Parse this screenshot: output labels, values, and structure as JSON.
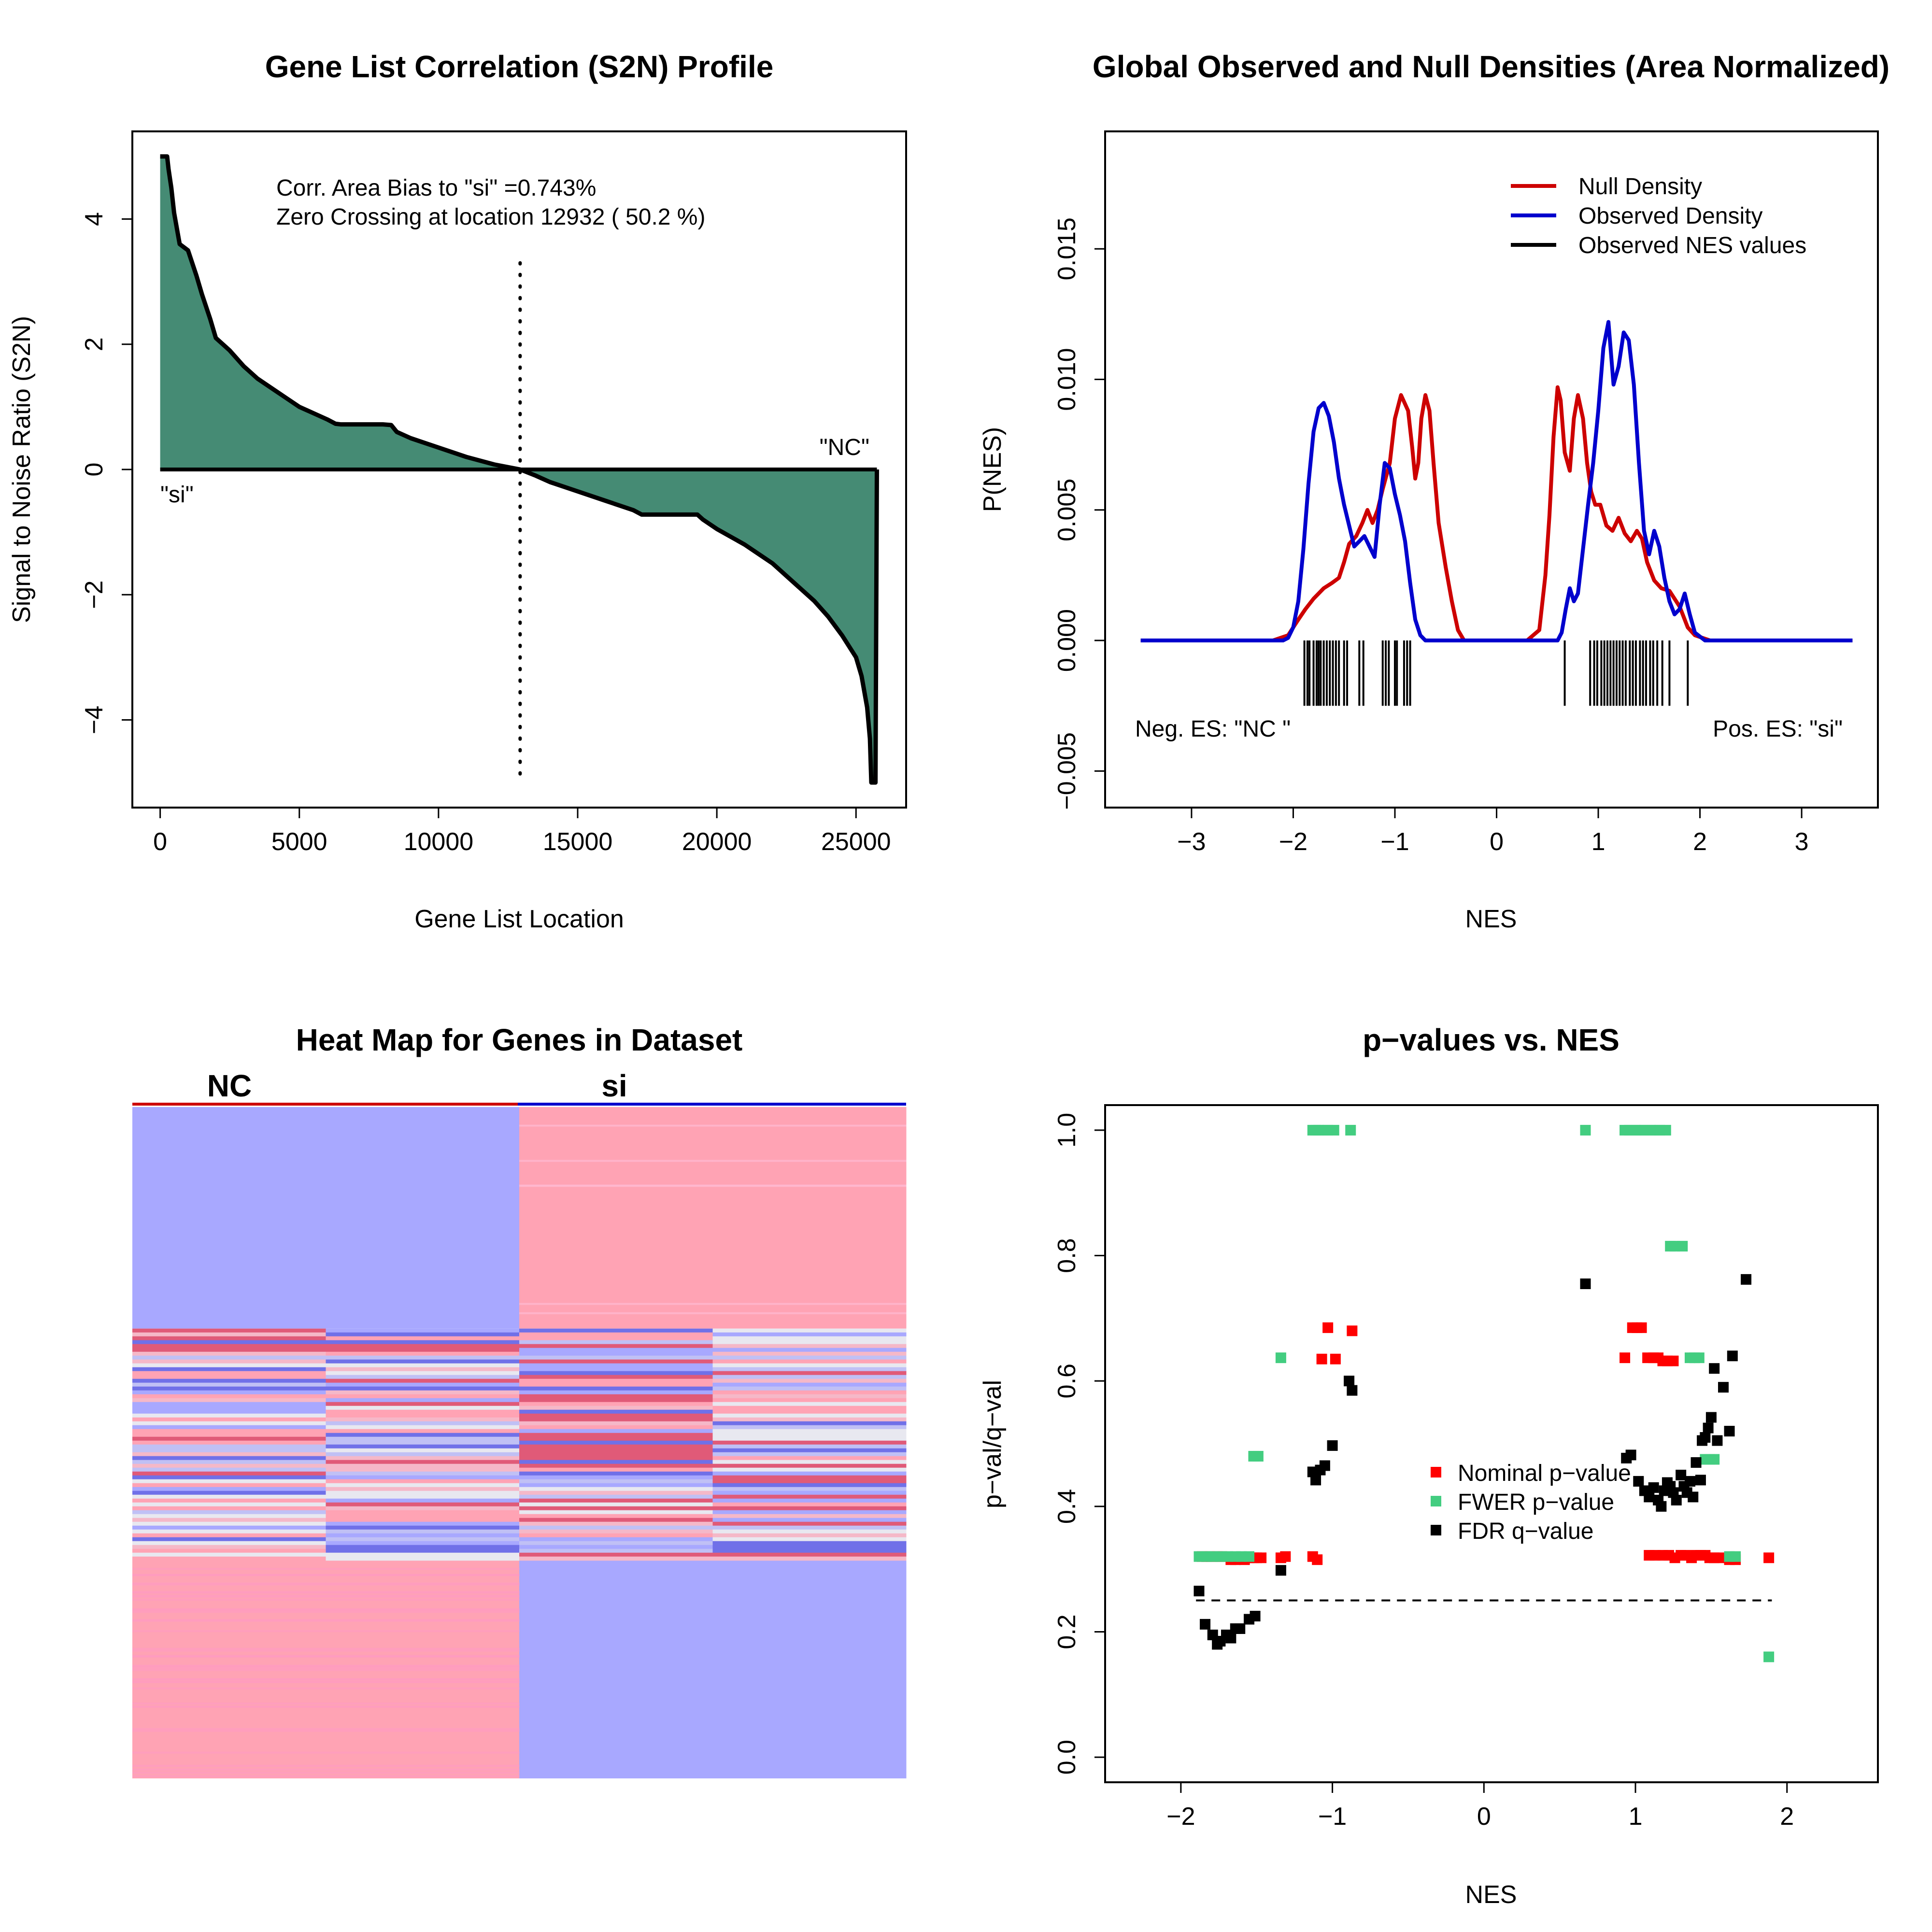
{
  "chart_data": [
    {
      "type": "area",
      "title": "Gene List Correlation (S2N) Profile",
      "xlabel": "Gene List Location",
      "ylabel": "Signal to Noise Ratio (S2N)",
      "xlim": [
        -1000,
        26800
      ],
      "ylim": [
        -5.4,
        5.4
      ],
      "xticks": [
        0,
        5000,
        10000,
        15000,
        20000,
        25000
      ],
      "yticks": [
        -4,
        -2,
        0,
        2,
        4
      ],
      "ytick_labels": [
        "−4",
        "−2",
        "0",
        "2",
        "4"
      ],
      "fill_color": "#458B74",
      "x": [
        0,
        250,
        300,
        400,
        500,
        700,
        1000,
        1300,
        1500,
        1800,
        2000,
        2500,
        3000,
        3500,
        4000,
        4500,
        5000,
        5500,
        6000,
        6300,
        6500,
        7000,
        7500,
        8000,
        8300,
        8500,
        9000,
        10000,
        11000,
        12000,
        12932,
        13500,
        14000,
        15000,
        16000,
        17000,
        17300,
        17500,
        18000,
        18500,
        19000,
        19300,
        19500,
        20000,
        21000,
        22000,
        23000,
        23500,
        24000,
        24500,
        25000,
        25200,
        25400,
        25500,
        25550,
        25600,
        25700,
        25750
      ],
      "y": [
        5.0,
        5.0,
        4.8,
        4.5,
        4.1,
        3.6,
        3.5,
        3.1,
        2.8,
        2.4,
        2.1,
        1.9,
        1.65,
        1.45,
        1.3,
        1.15,
        1.0,
        0.9,
        0.8,
        0.73,
        0.72,
        0.72,
        0.72,
        0.72,
        0.71,
        0.6,
        0.5,
        0.35,
        0.2,
        0.08,
        0.0,
        -0.1,
        -0.2,
        -0.35,
        -0.5,
        -0.65,
        -0.72,
        -0.72,
        -0.72,
        -0.72,
        -0.72,
        -0.72,
        -0.8,
        -0.95,
        -1.2,
        -1.5,
        -1.9,
        -2.1,
        -2.35,
        -2.65,
        -3.0,
        -3.3,
        -3.8,
        -4.3,
        -5.0,
        -5.0,
        -5.0,
        0.0
      ],
      "zero_crossing": 12932,
      "annotations": {
        "line1": "Corr. Area Bias to \"si\" =0.743%",
        "line2": "Zero Crossing at location  12932  ( 50.2  %)",
        "left_label": "\"si\"",
        "right_label": "\"NC\""
      }
    },
    {
      "type": "line",
      "title": "Global Observed and Null Densities (Area Normalized)",
      "xlabel": "NES",
      "ylabel": "P(NES)",
      "xlim": [
        -3.85,
        3.75
      ],
      "ylim": [
        -0.0064,
        0.0195
      ],
      "xticks": [
        -3,
        -2,
        -1,
        0,
        1,
        2,
        3
      ],
      "xtick_labels": [
        "−3",
        "−2",
        "−1",
        "0",
        "1",
        "2",
        "3"
      ],
      "yticks": [
        -0.005,
        0.0,
        0.005,
        0.01,
        0.015
      ],
      "ytick_labels": [
        "−0.005",
        "0.000",
        "0.005",
        "0.010",
        "0.015"
      ],
      "legend_position": "top-right",
      "series": [
        {
          "name": "Null Density",
          "color": "#CD0000",
          "x": [
            -3.5,
            -2.2,
            -2.05,
            -1.95,
            -1.88,
            -1.8,
            -1.7,
            -1.62,
            -1.55,
            -1.5,
            -1.45,
            -1.38,
            -1.32,
            -1.27,
            -1.22,
            -1.17,
            -1.12,
            -1.05,
            -1.0,
            -0.94,
            -0.87,
            -0.83,
            -0.8,
            -0.77,
            -0.74,
            -0.7,
            -0.66,
            -0.62,
            -0.57,
            -0.5,
            -0.44,
            -0.38,
            -0.32,
            -0.2,
            0.3,
            0.42,
            0.48,
            0.52,
            0.56,
            0.6,
            0.63,
            0.67,
            0.72,
            0.76,
            0.8,
            0.85,
            0.89,
            0.93,
            0.97,
            1.02,
            1.08,
            1.14,
            1.2,
            1.26,
            1.32,
            1.38,
            1.43,
            1.48,
            1.55,
            1.62,
            1.7,
            1.8,
            1.88,
            1.95,
            2.1,
            3.5
          ],
          "y": [
            0.0,
            0.0,
            0.0002,
            0.0008,
            0.0012,
            0.0016,
            0.002,
            0.0022,
            0.0024,
            0.003,
            0.0037,
            0.004,
            0.0045,
            0.005,
            0.0045,
            0.005,
            0.0058,
            0.0068,
            0.0085,
            0.0094,
            0.0088,
            0.0074,
            0.0062,
            0.0068,
            0.0085,
            0.0094,
            0.0088,
            0.0068,
            0.0045,
            0.0028,
            0.0015,
            0.0004,
            0.0,
            0.0,
            0.0,
            0.0004,
            0.0025,
            0.0048,
            0.0078,
            0.0097,
            0.0092,
            0.0072,
            0.0065,
            0.0085,
            0.0094,
            0.0085,
            0.0068,
            0.0057,
            0.0052,
            0.0052,
            0.0044,
            0.0042,
            0.0047,
            0.0041,
            0.0038,
            0.0042,
            0.0039,
            0.003,
            0.0023,
            0.002,
            0.0019,
            0.0013,
            0.0005,
            0.0002,
            0.0,
            0.0
          ]
        },
        {
          "name": "Observed Density",
          "color": "#0000CD",
          "x": [
            -3.5,
            -2.2,
            -2.1,
            -2.05,
            -2.0,
            -1.95,
            -1.9,
            -1.85,
            -1.8,
            -1.75,
            -1.7,
            -1.65,
            -1.6,
            -1.55,
            -1.5,
            -1.45,
            -1.4,
            -1.35,
            -1.3,
            -1.25,
            -1.2,
            -1.15,
            -1.1,
            -1.05,
            -1.0,
            -0.95,
            -0.9,
            -0.85,
            -0.8,
            -0.75,
            -0.7,
            -0.65,
            -0.6,
            -0.55,
            -0.5,
            -0.3,
            0.3,
            0.5,
            0.56,
            0.6,
            0.64,
            0.68,
            0.72,
            0.76,
            0.8,
            0.85,
            0.9,
            0.95,
            1.0,
            1.05,
            1.1,
            1.15,
            1.2,
            1.25,
            1.3,
            1.35,
            1.4,
            1.45,
            1.5,
            1.55,
            1.6,
            1.65,
            1.7,
            1.75,
            1.8,
            1.85,
            1.9,
            1.95,
            2.05,
            3.5
          ],
          "y": [
            0.0,
            0.0,
            0.0,
            0.0001,
            0.0005,
            0.0015,
            0.0035,
            0.006,
            0.008,
            0.0089,
            0.0091,
            0.0086,
            0.0076,
            0.0062,
            0.0052,
            0.0044,
            0.0036,
            0.0038,
            0.004,
            0.0036,
            0.0032,
            0.0052,
            0.0068,
            0.0066,
            0.0056,
            0.0048,
            0.0038,
            0.0022,
            0.0008,
            0.0002,
            0.0,
            0.0,
            0.0,
            0.0,
            0.0,
            0.0,
            0.0,
            0.0,
            0.0,
            0.0,
            0.0003,
            0.0012,
            0.002,
            0.0015,
            0.0018,
            0.0035,
            0.0052,
            0.0068,
            0.0088,
            0.0112,
            0.0122,
            0.0098,
            0.0105,
            0.0118,
            0.0115,
            0.0098,
            0.0068,
            0.0042,
            0.0033,
            0.0042,
            0.0036,
            0.0024,
            0.0015,
            0.001,
            0.0012,
            0.0018,
            0.001,
            0.0003,
            0.0,
            0.0
          ]
        }
      ],
      "rug_series_name": "Observed NES values",
      "rug_color": "#000000",
      "rug_values": [
        -1.89,
        -1.86,
        -1.84,
        -1.8,
        -1.77,
        -1.75,
        -1.73,
        -1.7,
        -1.67,
        -1.64,
        -1.61,
        -1.58,
        -1.55,
        -1.5,
        -1.47,
        -1.35,
        -1.31,
        -1.12,
        -1.09,
        -1.06,
        -1.0,
        -0.98,
        -0.91,
        -0.88,
        -0.85,
        0.67,
        0.92,
        0.96,
        0.99,
        1.03,
        1.06,
        1.09,
        1.12,
        1.15,
        1.18,
        1.21,
        1.24,
        1.27,
        1.31,
        1.34,
        1.37,
        1.41,
        1.44,
        1.47,
        1.51,
        1.54,
        1.58,
        1.63,
        1.7,
        1.88
      ],
      "annotations": {
        "left_label": "Neg. ES: \"NC \"",
        "right_label": "Pos. ES: \"si\""
      }
    },
    {
      "type": "heatmap",
      "title": "Heat Map for Genes in Dataset",
      "column_groups": [
        {
          "label": "NC",
          "color": "#CD0000"
        },
        {
          "label": "si",
          "color": "#0000CD"
        }
      ],
      "columns": 4,
      "colors": {
        "high": "#FFA3B4",
        "low": "#A8A8FF",
        "mid": "#E8E8F0",
        "deep_red": "#E05A78",
        "deep_blue": "#7070E8"
      },
      "top_block_rows_fraction": 0.33,
      "middle_block_rows_fraction": 0.34,
      "bottom_block_rows_fraction": 0.33
    },
    {
      "type": "scatter",
      "title": "p−values vs. NES",
      "xlabel": "NES",
      "ylabel": "p−val/q−val",
      "xlim": [
        -2.5,
        2.6
      ],
      "ylim": [
        -0.04,
        1.04
      ],
      "xticks": [
        -2,
        -1,
        0,
        1,
        2
      ],
      "xtick_labels": [
        "−2",
        "−1",
        "0",
        "1",
        "2"
      ],
      "yticks": [
        0.0,
        0.2,
        0.4,
        0.6,
        0.8,
        1.0
      ],
      "ytick_labels": [
        "0.0",
        "0.2",
        "0.4",
        "0.6",
        "0.8",
        "1.0"
      ],
      "threshold_line": 0.25,
      "legend_position": "center",
      "series": [
        {
          "name": "Nominal p−value",
          "color": "#FF0000",
          "x": [
            -1.86,
            -1.83,
            -1.8,
            -1.76,
            -1.73,
            -1.67,
            -1.64,
            -1.58,
            -1.55,
            -1.52,
            -1.5,
            -1.47,
            -1.34,
            -1.31,
            -1.13,
            -1.1,
            -1.07,
            -1.03,
            -0.98,
            -0.87,
            0.93,
            0.98,
            1.01,
            1.04,
            1.08,
            1.12,
            1.15,
            1.18,
            1.21,
            1.25,
            1.09,
            1.13,
            1.18,
            1.22,
            1.26,
            1.3,
            1.33,
            1.37,
            1.4,
            1.43,
            1.46,
            1.49,
            1.52,
            1.56,
            1.62,
            1.66,
            1.88
          ],
          "y": [
            0.32,
            0.32,
            0.32,
            0.32,
            0.32,
            0.315,
            0.315,
            0.315,
            0.318,
            0.318,
            0.318,
            0.318,
            0.318,
            0.32,
            0.32,
            0.315,
            0.635,
            0.685,
            0.635,
            0.68,
            0.637,
            0.685,
            0.685,
            0.685,
            0.637,
            0.637,
            0.637,
            0.632,
            0.632,
            0.632,
            0.322,
            0.322,
            0.322,
            0.322,
            0.318,
            0.322,
            0.322,
            0.318,
            0.322,
            0.322,
            0.322,
            0.318,
            0.318,
            0.318,
            0.315,
            0.315,
            0.318
          ]
        },
        {
          "name": "FWER p−value",
          "color": "#43CD80",
          "x": [
            -1.88,
            -1.83,
            -1.79,
            -1.74,
            -1.69,
            -1.64,
            -1.6,
            -1.55,
            -1.52,
            -1.49,
            -1.34,
            -1.13,
            -1.11,
            -1.09,
            -1.06,
            -1.03,
            -0.99,
            -0.88,
            0.67,
            0.93,
            0.96,
            1.0,
            1.03,
            1.06,
            1.1,
            1.13,
            1.16,
            1.2,
            1.23,
            1.26,
            1.31,
            1.36,
            1.39,
            1.42,
            1.46,
            1.49,
            1.52,
            1.62,
            1.66,
            1.88
          ],
          "y": [
            0.32,
            0.32,
            0.32,
            0.32,
            0.32,
            0.32,
            0.32,
            0.32,
            0.48,
            0.48,
            0.637,
            1.0,
            1.0,
            1.0,
            1.0,
            1.0,
            1.0,
            1.0,
            1.0,
            1.0,
            1.0,
            1.0,
            1.0,
            1.0,
            1.0,
            1.0,
            1.0,
            1.0,
            0.815,
            0.815,
            0.815,
            0.637,
            0.637,
            0.637,
            0.475,
            0.475,
            0.475,
            0.32,
            0.32,
            0.16
          ]
        },
        {
          "name": "FDR q−value",
          "color": "#000000",
          "x": [
            -1.88,
            -1.84,
            -1.79,
            -1.76,
            -1.74,
            -1.7,
            -1.67,
            -1.64,
            -1.61,
            -1.55,
            -1.51,
            -1.34,
            -1.13,
            -1.11,
            -1.08,
            -1.05,
            -1.0,
            -0.89,
            -0.87,
            0.67,
            0.94,
            0.97,
            1.02,
            1.06,
            1.09,
            1.12,
            1.15,
            1.17,
            1.19,
            1.21,
            1.23,
            1.25,
            1.27,
            1.3,
            1.32,
            1.34,
            1.36,
            1.38,
            1.4,
            1.43,
            1.44,
            1.46,
            1.48,
            1.5,
            1.52,
            1.54,
            1.58,
            1.62,
            1.64,
            1.73
          ],
          "y": [
            0.265,
            0.212,
            0.195,
            0.18,
            0.185,
            0.195,
            0.19,
            0.205,
            0.205,
            0.22,
            0.225,
            0.298,
            0.455,
            0.442,
            0.458,
            0.465,
            0.497,
            0.6,
            0.585,
            0.755,
            0.477,
            0.482,
            0.44,
            0.425,
            0.415,
            0.43,
            0.41,
            0.4,
            0.425,
            0.438,
            0.432,
            0.422,
            0.41,
            0.45,
            0.432,
            0.422,
            0.44,
            0.415,
            0.47,
            0.442,
            0.505,
            0.51,
            0.525,
            0.542,
            0.62,
            0.505,
            0.59,
            0.52,
            0.64,
            0.762
          ]
        }
      ]
    }
  ]
}
